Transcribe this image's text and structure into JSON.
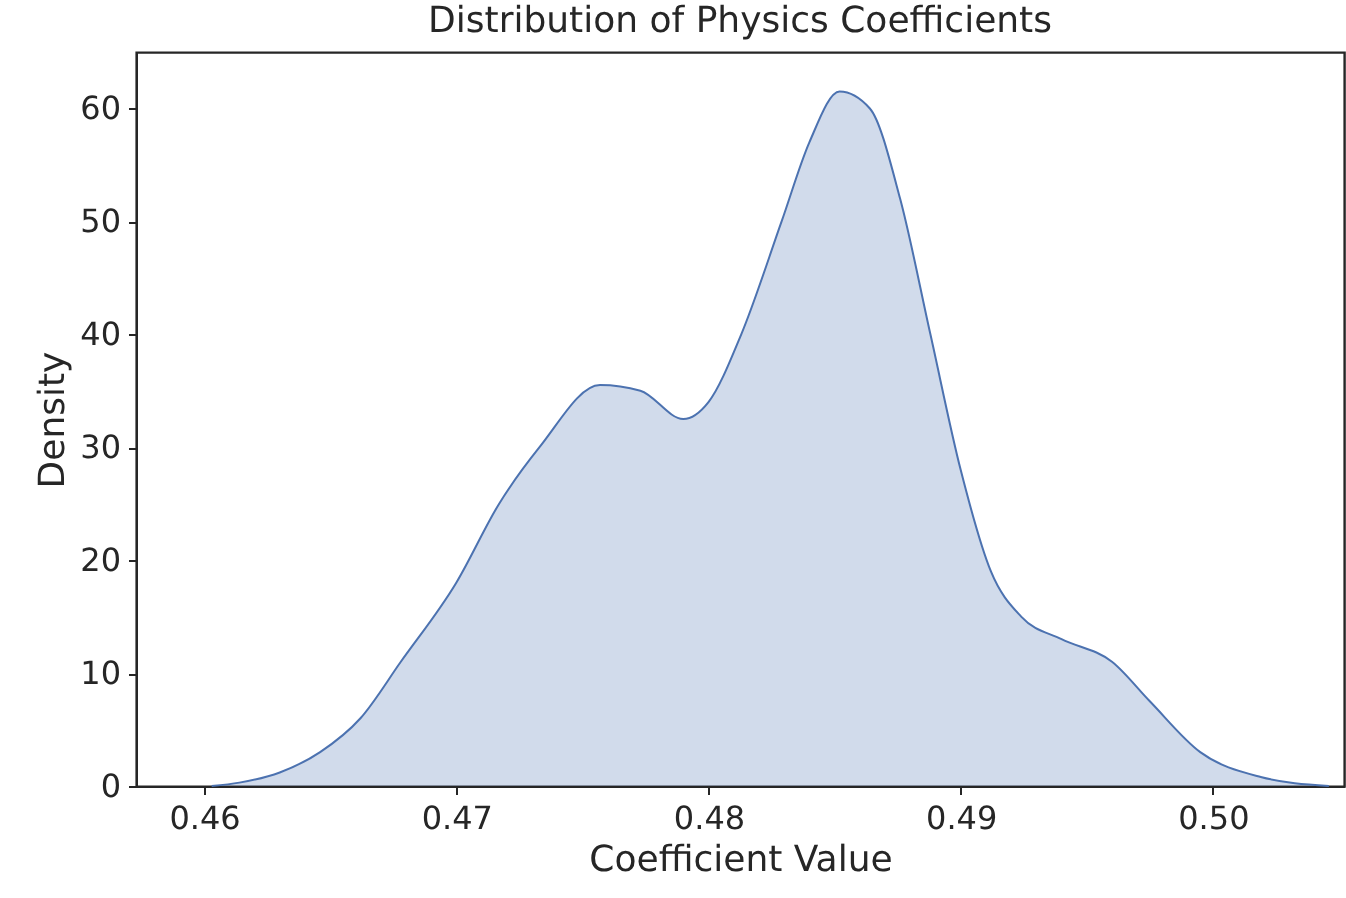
{
  "chart_data": {
    "type": "area",
    "title": "Distribution of Physics Coefficients",
    "xlabel": "Coefficient Value",
    "ylabel": "Density",
    "xlim": [
      0.4573,
      0.5052
    ],
    "ylim": [
      0,
      65
    ],
    "xticks": [
      0.46,
      0.47,
      0.48,
      0.49,
      {
        "value": 0.5,
        "label": "0.50"
      }
    ],
    "yticks": [
      0,
      10,
      20,
      30,
      40,
      50,
      60
    ],
    "grid": false,
    "series": [
      {
        "color": "#4c72b0",
        "x": [
          0.4603,
          0.4614,
          0.463,
          0.4646,
          0.4662,
          0.4678,
          0.47,
          0.4717,
          0.4733,
          0.4757,
          0.4773,
          0.479,
          0.48,
          0.4813,
          0.4829,
          0.484,
          0.4852,
          0.4864,
          0.4876,
          0.4888,
          0.49,
          0.4912,
          0.4924,
          0.494,
          0.496,
          0.4975,
          0.4995,
          0.5019,
          0.5046
        ],
        "values": [
          0,
          0.3,
          1.2,
          3,
          6,
          11,
          18,
          25,
          30,
          35.5,
          35,
          32.5,
          34,
          40,
          50,
          57,
          61.5,
          60,
          52,
          40,
          28,
          19,
          15,
          13,
          11,
          7.5,
          3,
          0.8,
          0
        ]
      }
    ]
  }
}
